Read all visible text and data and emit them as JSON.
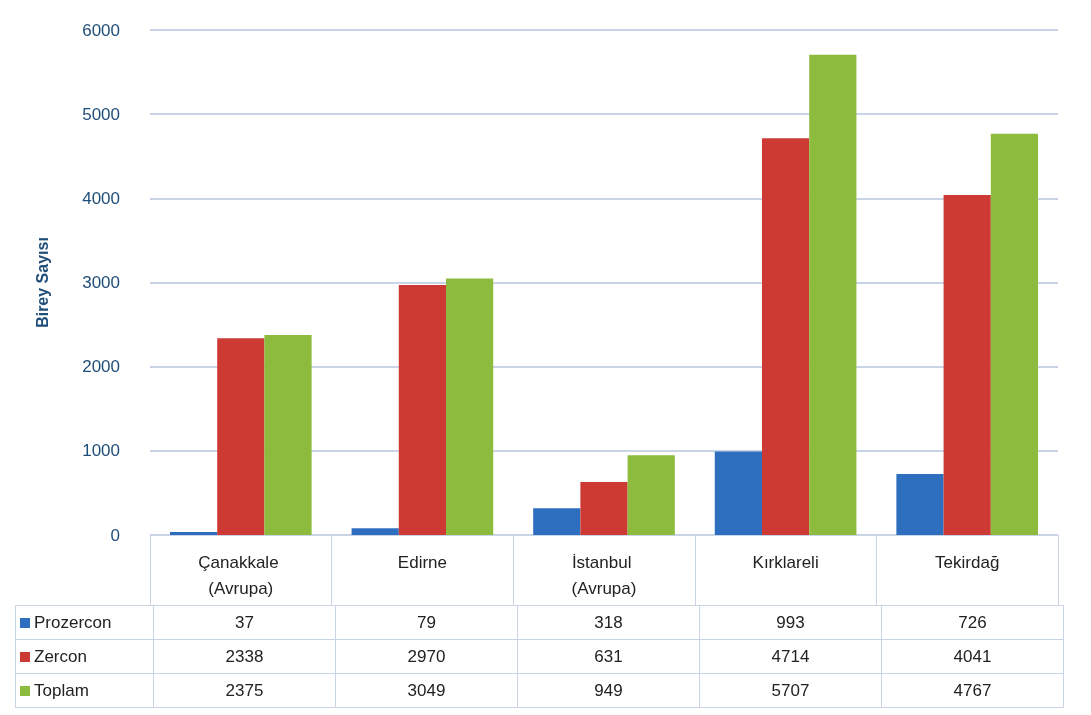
{
  "chart_data": {
    "type": "bar",
    "ylabel": "Birey Sayısı",
    "categories": [
      "Çanakkale (Avrupa)",
      "Edirne",
      "İstanbul (Avrupa)",
      "Kırklareli",
      "Tekirdağ"
    ],
    "series": [
      {
        "name": "Prozercon",
        "color": "#2e6ebf",
        "values": [
          37,
          79,
          318,
          993,
          726
        ]
      },
      {
        "name": "Zercon",
        "color": "#cc3a33",
        "values": [
          2338,
          2970,
          631,
          4714,
          4041
        ]
      },
      {
        "name": "Toplam",
        "color": "#8dbb3e",
        "values": [
          2375,
          3049,
          949,
          5707,
          4767
        ]
      }
    ],
    "ylim": [
      0,
      6000
    ],
    "yticks": [
      0,
      1000,
      2000,
      3000,
      4000,
      5000,
      6000
    ],
    "grid": "y",
    "legend": "bottom",
    "data_labels": true
  }
}
